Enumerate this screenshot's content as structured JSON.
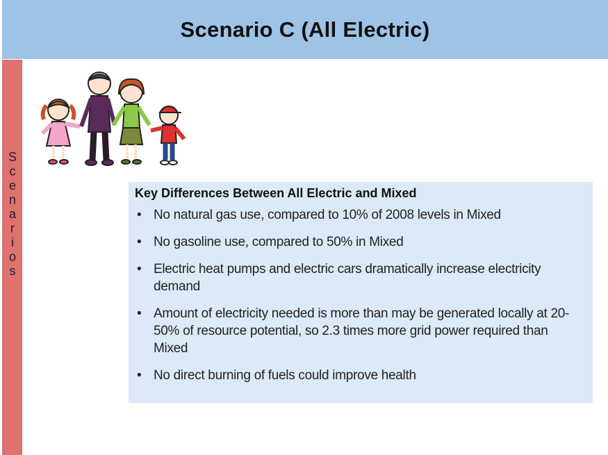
{
  "header": {
    "title": "Scenario C (All Electric)"
  },
  "sidebar": {
    "label": "Scenarios"
  },
  "box": {
    "heading": "Key Differences Between All Electric and Mixed",
    "bullets": [
      "No natural gas use, compared to 10% of 2008 levels in Mixed",
      "No gasoline use, compared to 50% in Mixed",
      "Electric heat pumps and electric cars dramatically increase electricity demand",
      "Amount of electricity needed is more than may be generated locally at 20-50% of resource potential, so 2.3 times more grid power required than Mixed",
      "No direct burning of fuels could improve health"
    ]
  }
}
